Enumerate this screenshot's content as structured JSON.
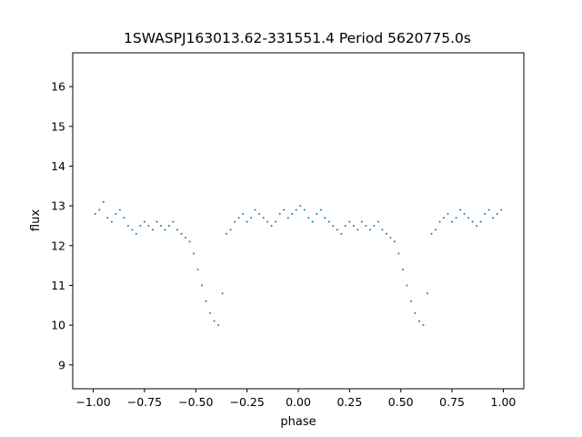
{
  "chart_data": {
    "type": "scatter",
    "title": "1SWASPJ163013.62-331551.4 Period 5620775.0s",
    "xlabel": "phase",
    "ylabel": "flux",
    "xlim": [
      -1.1,
      1.1
    ],
    "ylim": [
      8.4,
      16.85
    ],
    "x_ticks": [
      {
        "value": -1.0,
        "label": "−1.00"
      },
      {
        "value": -0.75,
        "label": "−0.75"
      },
      {
        "value": -0.5,
        "label": "−0.50"
      },
      {
        "value": -0.25,
        "label": "−0.25"
      },
      {
        "value": 0.0,
        "label": "0.00"
      },
      {
        "value": 0.25,
        "label": "0.25"
      },
      {
        "value": 0.5,
        "label": "0.50"
      },
      {
        "value": 0.75,
        "label": "0.75"
      },
      {
        "value": 1.0,
        "label": "1.00"
      }
    ],
    "y_ticks": [
      {
        "value": 9,
        "label": "9"
      },
      {
        "value": 10,
        "label": "10"
      },
      {
        "value": 11,
        "label": "11"
      },
      {
        "value": 12,
        "label": "12"
      },
      {
        "value": 13,
        "label": "13"
      },
      {
        "value": 14,
        "label": "14"
      },
      {
        "value": 15,
        "label": "15"
      },
      {
        "value": 16,
        "label": "16"
      }
    ],
    "grid": false,
    "point_color": "#1f77b4",
    "series": [
      {
        "x": [
          -0.99,
          -0.97,
          -0.95,
          -0.93,
          -0.91,
          -0.89,
          -0.87,
          -0.85,
          -0.83,
          -0.81,
          -0.79,
          -0.77,
          -0.75,
          -0.73,
          -0.71,
          -0.69,
          -0.67,
          -0.65,
          -0.63,
          -0.61,
          -0.59,
          -0.57,
          -0.55,
          -0.53,
          -0.51,
          -0.49,
          -0.47,
          -0.45,
          -0.43,
          -0.41,
          -0.39,
          -0.37,
          -0.35,
          -0.33,
          -0.31,
          -0.29,
          -0.27,
          -0.25,
          -0.23,
          -0.21,
          -0.19,
          -0.17,
          -0.15,
          -0.13,
          -0.11,
          -0.09,
          -0.07,
          -0.05,
          -0.03,
          -0.01,
          0.01,
          0.03,
          0.05,
          0.07,
          0.09,
          0.11,
          0.13,
          0.15,
          0.17,
          0.19,
          0.21,
          0.23,
          0.25,
          0.27,
          0.29,
          0.31,
          0.33,
          0.35,
          0.37,
          0.39,
          0.41,
          0.43,
          0.45,
          0.47,
          0.49,
          0.51,
          0.53,
          0.55,
          0.57,
          0.59,
          0.61,
          0.63,
          0.65,
          0.67,
          0.69,
          0.71,
          0.73,
          0.75,
          0.77,
          0.79,
          0.81,
          0.83,
          0.85,
          0.87,
          0.89,
          0.91,
          0.93,
          0.95,
          0.97,
          0.99
        ],
        "y": [
          12.8,
          12.9,
          13.1,
          12.7,
          12.6,
          12.8,
          12.9,
          12.7,
          12.5,
          12.4,
          12.3,
          12.5,
          12.6,
          12.5,
          12.4,
          12.6,
          12.5,
          12.4,
          12.5,
          12.6,
          12.4,
          12.3,
          12.2,
          12.1,
          11.8,
          11.4,
          11.0,
          10.6,
          10.3,
          10.1,
          10.0,
          10.8,
          12.3,
          12.4,
          12.6,
          12.7,
          12.8,
          12.6,
          12.7,
          12.9,
          12.8,
          12.7,
          12.6,
          12.5,
          12.6,
          12.8,
          12.9,
          12.7,
          12.8,
          12.9,
          13.0,
          12.9,
          12.7,
          12.6,
          12.8,
          12.9,
          12.7,
          12.6,
          12.5,
          12.4,
          12.3,
          12.5,
          12.6,
          12.5,
          12.4,
          12.6,
          12.5,
          12.4,
          12.5,
          12.6,
          12.4,
          12.3,
          12.2,
          12.1,
          11.8,
          11.4,
          11.0,
          10.6,
          10.3,
          10.1,
          10.0,
          10.8,
          12.3,
          12.4,
          12.6,
          12.7,
          12.8,
          12.6,
          12.7,
          12.9,
          12.8,
          12.7,
          12.6,
          12.5,
          12.6,
          12.8,
          12.9,
          12.7,
          12.8,
          12.9
        ]
      }
    ]
  }
}
